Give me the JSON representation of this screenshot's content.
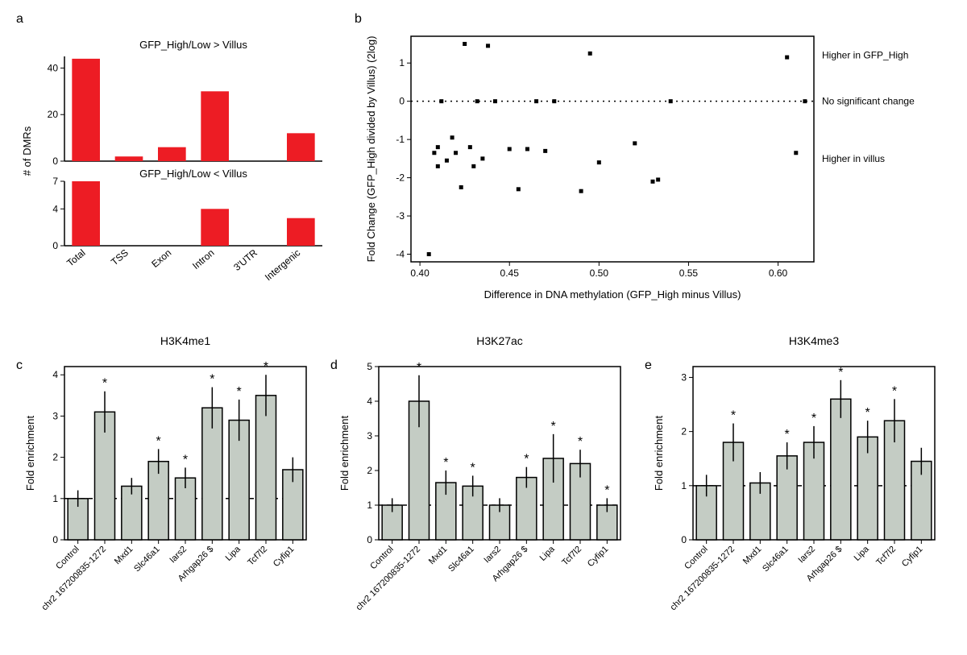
{
  "panel_a": {
    "label": "a",
    "type": "bar",
    "top_title": "GFP_High/Low > Villus",
    "bottom_title": "GFP_High/Low < Villus",
    "ylabel": "# of DMRs",
    "categories": [
      "Total",
      "TSS",
      "Exon",
      "Intron",
      "3'UTR",
      "Intergenic"
    ],
    "top_values": [
      44,
      2,
      6,
      30,
      0,
      12
    ],
    "bottom_values": [
      7,
      0,
      0,
      4,
      0,
      3
    ],
    "top_ylim": [
      0,
      45
    ],
    "top_yticks": [
      0,
      20,
      40
    ],
    "bottom_ylim": [
      0,
      7
    ],
    "bottom_yticks": [
      0,
      4,
      7
    ],
    "bar_color": "#ed1c24",
    "axis_color": "#000000",
    "label_fontsize": 12
  },
  "panel_b": {
    "label": "b",
    "type": "scatter",
    "xlabel": "Difference in DNA methylation (GFP_High minus Villus)",
    "ylabel": "Fold Change (GFP_High divided by Villus) (2log)",
    "right_labels": [
      "Higher in GFP_High",
      "No significant change",
      "Higher in villus"
    ],
    "xlim": [
      0.395,
      0.62
    ],
    "ylim": [
      -4.2,
      1.7
    ],
    "xticks": [
      0.4,
      0.45,
      0.5,
      0.55,
      0.6
    ],
    "yticks": [
      -4,
      -3,
      -2,
      -1,
      0,
      1
    ],
    "marker_color": "#000000",
    "marker_size": 5,
    "axis_color": "#000000",
    "label_fontsize": 12,
    "points": [
      [
        0.405,
        -4.0
      ],
      [
        0.408,
        -1.35
      ],
      [
        0.41,
        -1.2
      ],
      [
        0.41,
        -1.7
      ],
      [
        0.412,
        0
      ],
      [
        0.415,
        -1.55
      ],
      [
        0.418,
        -0.95
      ],
      [
        0.42,
        -1.35
      ],
      [
        0.423,
        -2.25
      ],
      [
        0.425,
        1.5
      ],
      [
        0.428,
        -1.2
      ],
      [
        0.43,
        -1.7
      ],
      [
        0.432,
        0
      ],
      [
        0.435,
        -1.5
      ],
      [
        0.438,
        1.45
      ],
      [
        0.442,
        0
      ],
      [
        0.45,
        -1.25
      ],
      [
        0.455,
        -2.3
      ],
      [
        0.46,
        -1.25
      ],
      [
        0.465,
        0
      ],
      [
        0.47,
        -1.3
      ],
      [
        0.475,
        0
      ],
      [
        0.49,
        -2.35
      ],
      [
        0.495,
        1.25
      ],
      [
        0.5,
        -1.6
      ],
      [
        0.52,
        -1.1
      ],
      [
        0.53,
        -2.1
      ],
      [
        0.533,
        -2.05
      ],
      [
        0.54,
        0
      ],
      [
        0.605,
        1.15
      ],
      [
        0.61,
        -1.35
      ],
      [
        0.615,
        0
      ]
    ]
  },
  "panel_c": {
    "label": "c",
    "type": "bar",
    "title": "H3K4me1",
    "ylabel": "Fold enrichment",
    "categories": [
      "Control",
      "chr2 167200835-1272",
      "Mxd1",
      "Slc46a1",
      "Iars2",
      "Arhgap26 $",
      "Lipa",
      "Tcf7l2",
      "Cyfip1"
    ],
    "values": [
      1.0,
      3.1,
      1.3,
      1.9,
      1.5,
      3.2,
      2.9,
      3.5,
      1.7
    ],
    "errors": [
      0.2,
      0.5,
      0.2,
      0.3,
      0.25,
      0.5,
      0.5,
      0.5,
      0.3
    ],
    "stars": [
      false,
      true,
      false,
      true,
      true,
      true,
      true,
      true,
      false
    ],
    "ylim": [
      0,
      4.2
    ],
    "yticks": [
      0,
      1,
      2,
      3,
      4
    ],
    "bar_color": "#c4ccc4",
    "bar_stroke": "#000000",
    "axis_color": "#000000",
    "dashed_line_y": 1.0,
    "label_fontsize": 12
  },
  "panel_d": {
    "label": "d",
    "type": "bar",
    "title": "H3K27ac",
    "ylabel": "Fold enrichment",
    "categories": [
      "Control",
      "chr2 167200835-1272",
      "Mxd1",
      "Slc46a1",
      "Iars2",
      "Arhgap26 $",
      "Lipa",
      "Tcf7l2",
      "Cyfip1"
    ],
    "values": [
      1.0,
      4.0,
      1.65,
      1.55,
      1.0,
      1.8,
      2.35,
      2.2,
      1.0
    ],
    "errors": [
      0.2,
      0.75,
      0.35,
      0.3,
      0.2,
      0.3,
      0.7,
      0.4,
      0.2
    ],
    "stars": [
      false,
      true,
      true,
      true,
      false,
      true,
      true,
      true,
      true
    ],
    "ylim": [
      0,
      5.0
    ],
    "yticks": [
      0,
      1,
      2,
      3,
      4,
      5
    ],
    "bar_color": "#c4ccc4",
    "bar_stroke": "#000000",
    "axis_color": "#000000",
    "dashed_line_y": 1.0,
    "label_fontsize": 12
  },
  "panel_e": {
    "label": "e",
    "type": "bar",
    "title": "H3K4me3",
    "ylabel": "Fold enrichment",
    "categories": [
      "Control",
      "chr2 167200835-1272",
      "Mxd1",
      "Slc46a1",
      "Iars2",
      "Arhgap26 $",
      "Lipa",
      "Tcf7l2",
      "Cyfip1"
    ],
    "values": [
      1.0,
      1.8,
      1.05,
      1.55,
      1.8,
      2.6,
      1.9,
      2.2,
      1.45
    ],
    "errors": [
      0.2,
      0.35,
      0.2,
      0.25,
      0.3,
      0.35,
      0.3,
      0.4,
      0.25
    ],
    "stars": [
      false,
      true,
      false,
      true,
      true,
      true,
      true,
      true,
      false
    ],
    "ylim": [
      0,
      3.2
    ],
    "yticks": [
      0,
      1,
      2,
      3
    ],
    "bar_color": "#c4ccc4",
    "bar_stroke": "#000000",
    "axis_color": "#000000",
    "dashed_line_y": 1.0,
    "label_fontsize": 12
  }
}
